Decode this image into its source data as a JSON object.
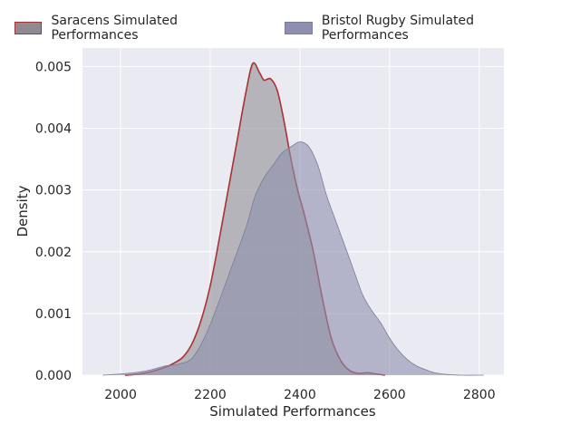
{
  "chart_data": {
    "type": "area",
    "xlabel": "Simulated Performances",
    "ylabel": "Density",
    "xlim": [
      1915,
      2855
    ],
    "ylim": [
      0,
      0.0053
    ],
    "x_ticks": [
      "2000",
      "2200",
      "2400",
      "2600",
      "2800"
    ],
    "y_ticks": [
      "0.000",
      "0.001",
      "0.002",
      "0.003",
      "0.004",
      "0.005"
    ],
    "grid": true,
    "legend_position": "top",
    "series": [
      {
        "name": "Saracens Simulated Performances",
        "fill_color": "#8f8f95",
        "line_color": "#a83232",
        "points": [
          [
            2010,
            0.0
          ],
          [
            2030,
            1e-05
          ],
          [
            2050,
            3e-05
          ],
          [
            2070,
            6e-05
          ],
          [
            2100,
            0.00013
          ],
          [
            2120,
            0.0002
          ],
          [
            2140,
            0.0003
          ],
          [
            2160,
            0.00052
          ],
          [
            2180,
            0.0009
          ],
          [
            2200,
            0.00145
          ],
          [
            2220,
            0.0022
          ],
          [
            2240,
            0.003
          ],
          [
            2260,
            0.0038
          ],
          [
            2280,
            0.0046
          ],
          [
            2295,
            0.00505
          ],
          [
            2310,
            0.0049
          ],
          [
            2320,
            0.00478
          ],
          [
            2335,
            0.0048
          ],
          [
            2350,
            0.0046
          ],
          [
            2365,
            0.0041
          ],
          [
            2380,
            0.0035
          ],
          [
            2395,
            0.003
          ],
          [
            2410,
            0.0026
          ],
          [
            2430,
            0.002
          ],
          [
            2450,
            0.00125
          ],
          [
            2470,
            0.0006
          ],
          [
            2490,
            0.00025
          ],
          [
            2510,
            8e-05
          ],
          [
            2530,
            3e-05
          ],
          [
            2550,
            4e-05
          ],
          [
            2570,
            2e-05
          ],
          [
            2590,
            0.0
          ]
        ]
      },
      {
        "name": "Bristol Rugby Simulated Performances",
        "fill_color": "#8e8fae",
        "line_color": "#7a7c99",
        "points": [
          [
            1960,
            0.0
          ],
          [
            2000,
            2e-05
          ],
          [
            2040,
            5e-05
          ],
          [
            2070,
            9e-05
          ],
          [
            2100,
            0.00015
          ],
          [
            2130,
            0.00018
          ],
          [
            2160,
            0.00028
          ],
          [
            2190,
            0.00065
          ],
          [
            2220,
            0.0012
          ],
          [
            2250,
            0.0018
          ],
          [
            2280,
            0.0024
          ],
          [
            2300,
            0.0029
          ],
          [
            2320,
            0.0032
          ],
          [
            2340,
            0.0034
          ],
          [
            2360,
            0.0036
          ],
          [
            2380,
            0.0037
          ],
          [
            2400,
            0.00378
          ],
          [
            2420,
            0.0037
          ],
          [
            2440,
            0.0034
          ],
          [
            2460,
            0.0029
          ],
          [
            2480,
            0.0025
          ],
          [
            2500,
            0.0021
          ],
          [
            2520,
            0.0017
          ],
          [
            2540,
            0.0013
          ],
          [
            2560,
            0.00105
          ],
          [
            2580,
            0.00085
          ],
          [
            2600,
            0.0006
          ],
          [
            2620,
            0.0004
          ],
          [
            2640,
            0.00025
          ],
          [
            2660,
            0.00015
          ],
          [
            2680,
            9e-05
          ],
          [
            2700,
            4e-05
          ],
          [
            2730,
            1e-05
          ],
          [
            2760,
            0.0
          ],
          [
            2810,
            0.0
          ]
        ]
      }
    ]
  }
}
